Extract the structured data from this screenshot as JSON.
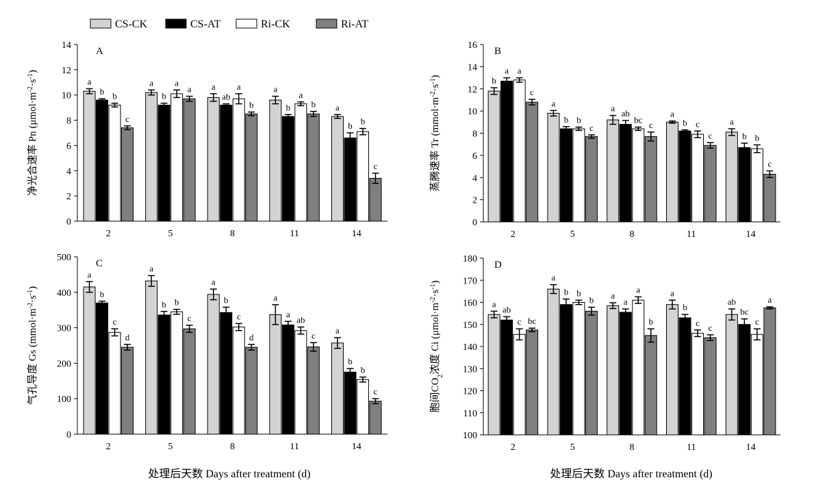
{
  "legend": [
    {
      "name": "CS-CK",
      "color": "#d3d3d3"
    },
    {
      "name": "CS-AT",
      "color": "#000000"
    },
    {
      "name": "Ri-CK",
      "color": "#ffffff"
    },
    {
      "name": "Ri-AT",
      "color": "#808080"
    }
  ],
  "chart_data": [
    {
      "type": "bar",
      "panel": "A",
      "ylabel": "净光合速率 Pn (μmol·m-2·s-1)",
      "ylabel_parts": [
        "净光合速率 Pn (μmol·m",
        "-2",
        "·s",
        "-1",
        ")"
      ],
      "categories": [
        "2",
        "5",
        "8",
        "11",
        "14"
      ],
      "ylim": [
        0,
        14
      ],
      "yticks": [
        0,
        2,
        4,
        6,
        8,
        10,
        12,
        14
      ],
      "series": [
        {
          "name": "CS-CK",
          "values": [
            10.3,
            10.2,
            9.8,
            9.6,
            8.3
          ],
          "errors": [
            0.2,
            0.2,
            0.3,
            0.3,
            0.15
          ],
          "labels": [
            "a",
            "a",
            "a",
            "a",
            "a"
          ]
        },
        {
          "name": "CS-AT",
          "values": [
            9.6,
            9.2,
            9.2,
            8.3,
            6.6
          ],
          "errors": [
            0.1,
            0.15,
            0.1,
            0.15,
            0.4
          ],
          "labels": [
            "b",
            "b",
            "ab",
            "b",
            "b"
          ]
        },
        {
          "name": "Ri-CK",
          "values": [
            9.2,
            10.1,
            9.7,
            9.3,
            7.1
          ],
          "errors": [
            0.15,
            0.3,
            0.4,
            0.15,
            0.25
          ],
          "labels": [
            "b",
            "a",
            "a",
            "a",
            "b"
          ]
        },
        {
          "name": "Ri-AT",
          "values": [
            7.4,
            9.7,
            8.5,
            8.5,
            3.4
          ],
          "errors": [
            0.15,
            0.2,
            0.15,
            0.2,
            0.4
          ],
          "labels": [
            "c",
            "a",
            "b",
            "b",
            "c"
          ]
        }
      ]
    },
    {
      "type": "bar",
      "panel": "B",
      "ylabel": "蒸腾速率 Tr (mmol·m-2·s-1)",
      "ylabel_parts": [
        "蒸腾速率 Tr (mmol·m",
        "-2",
        "·s",
        "-1",
        ")"
      ],
      "categories": [
        "2",
        "5",
        "8",
        "11",
        "14"
      ],
      "ylim": [
        0,
        16
      ],
      "yticks": [
        0,
        2,
        4,
        6,
        8,
        10,
        12,
        14,
        16
      ],
      "series": [
        {
          "name": "CS-CK",
          "values": [
            11.8,
            9.8,
            9.2,
            9.0,
            8.1
          ],
          "errors": [
            0.3,
            0.25,
            0.4,
            0.1,
            0.3
          ],
          "labels": [
            "b",
            "a",
            "a",
            "a",
            "a"
          ]
        },
        {
          "name": "CS-AT",
          "values": [
            12.7,
            8.4,
            8.8,
            8.2,
            6.7
          ],
          "errors": [
            0.3,
            0.2,
            0.35,
            0.1,
            0.4
          ],
          "labels": [
            "a",
            "b",
            "ab",
            "b",
            "b"
          ]
        },
        {
          "name": "Ri-CK",
          "values": [
            12.8,
            8.4,
            8.4,
            7.9,
            6.6
          ],
          "errors": [
            0.2,
            0.15,
            0.15,
            0.3,
            0.35
          ],
          "labels": [
            "a",
            "b",
            "bc",
            "c",
            "b"
          ]
        },
        {
          "name": "Ri-AT",
          "values": [
            10.8,
            7.7,
            7.7,
            6.9,
            4.3
          ],
          "errors": [
            0.25,
            0.15,
            0.4,
            0.25,
            0.3
          ],
          "labels": [
            "c",
            "c",
            "c",
            "c",
            "c"
          ]
        }
      ]
    },
    {
      "type": "bar",
      "panel": "C",
      "ylabel": "气孔导度 Gs (mmol·m-2·s-1)",
      "ylabel_parts": [
        "气孔导度 Gs (mmol·m",
        "-2",
        "·s",
        "-1",
        ")"
      ],
      "categories": [
        "2",
        "5",
        "8",
        "11",
        "14"
      ],
      "ylim": [
        0,
        500
      ],
      "yticks": [
        0,
        100,
        200,
        300,
        400,
        500
      ],
      "series": [
        {
          "name": "CS-CK",
          "values": [
            415,
            432,
            394,
            337,
            257
          ],
          "errors": [
            15,
            15,
            15,
            28,
            15
          ],
          "labels": [
            "a",
            "a",
            "a",
            "a",
            "a"
          ]
        },
        {
          "name": "CS-AT",
          "values": [
            370,
            336,
            343,
            308,
            175
          ],
          "errors": [
            5,
            10,
            15,
            10,
            10
          ],
          "labels": [
            "b",
            "b",
            "b",
            "a",
            "b"
          ]
        },
        {
          "name": "Ri-CK",
          "values": [
            287,
            345,
            302,
            292,
            154
          ],
          "errors": [
            10,
            7,
            10,
            10,
            7
          ],
          "labels": [
            "c",
            "b",
            "c",
            "ab",
            "b"
          ]
        },
        {
          "name": "Ri-AT",
          "values": [
            245,
            297,
            245,
            246,
            93
          ],
          "errors": [
            8,
            10,
            8,
            12,
            7
          ],
          "labels": [
            "d",
            "c",
            "d",
            "c",
            "c"
          ]
        }
      ]
    },
    {
      "type": "bar",
      "panel": "D",
      "ylabel": "胞间CO2浓度 Ci (μmol·m-2·s-1)",
      "ylabel_parts": [
        "胞间CO",
        "2",
        "浓度 Ci (μmol·m",
        "-2",
        "·s",
        "-1",
        ")"
      ],
      "categories": [
        "2",
        "5",
        "8",
        "11",
        "14"
      ],
      "ylim": [
        100,
        180
      ],
      "yticks": [
        100,
        110,
        120,
        130,
        140,
        150,
        160,
        170,
        180
      ],
      "series": [
        {
          "name": "CS-CK",
          "values": [
            154.5,
            166.0,
            158.5,
            159.0,
            154.5
          ],
          "errors": [
            1.5,
            2.0,
            1.3,
            2.0,
            2.5
          ],
          "labels": [
            "a",
            "a",
            "a",
            "a",
            "ab"
          ]
        },
        {
          "name": "CS-AT",
          "values": [
            152.0,
            159.0,
            155.5,
            153.0,
            150.0
          ],
          "errors": [
            1.5,
            2.5,
            1.5,
            1.5,
            2.5
          ],
          "labels": [
            "ab",
            "b",
            "a",
            "b",
            "bc"
          ]
        },
        {
          "name": "Ri-CK",
          "values": [
            145.5,
            160.0,
            161.0,
            146.0,
            145.5
          ],
          "errors": [
            2.5,
            1.0,
            1.5,
            1.5,
            2.5
          ],
          "labels": [
            "c",
            "b",
            "a",
            "c",
            "c"
          ]
        },
        {
          "name": "Ri-AT",
          "values": [
            147.5,
            156.0,
            145.0,
            144.0,
            157.5
          ],
          "errors": [
            0.8,
            1.8,
            3.0,
            1.3,
            0.5
          ],
          "labels": [
            "bc",
            "b",
            "b",
            "c",
            "a"
          ]
        }
      ]
    }
  ],
  "xaxis_title": "处理后天数 Days after treatment (d)"
}
